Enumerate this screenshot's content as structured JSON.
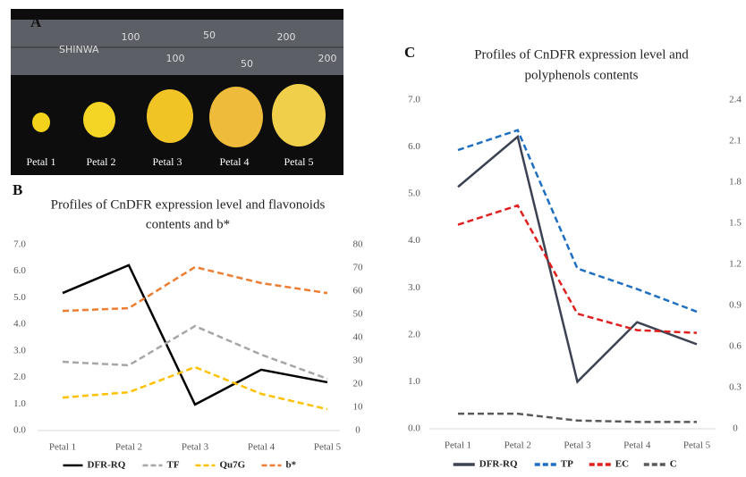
{
  "panel_a": {
    "panel": "A",
    "brand": "SHINWA",
    "ruler_labels": [
      "100",
      "50",
      "200",
      "100",
      "50",
      "200"
    ],
    "petals": [
      "Petal 1",
      "Petal 2",
      "Petal 3",
      "Petal 4",
      "Petal 5"
    ]
  },
  "chart_data": [
    {
      "type": "line",
      "panel": "B",
      "title": [
        "Profiles of CnDFR expression level and flavonoids",
        "contents and b*"
      ],
      "categories": [
        "Petal 1",
        "Petal 2",
        "Petal 3",
        "Petal 4",
        "Petal 5"
      ],
      "ylim": [
        0,
        7
      ],
      "yticks": [
        {
          "value": 0,
          "label": "0.0"
        },
        {
          "value": 1,
          "label": "1.0"
        },
        {
          "value": 2,
          "label": "2.0"
        },
        {
          "value": 3,
          "label": "3.0"
        },
        {
          "value": 4,
          "label": "4.0"
        },
        {
          "value": 5,
          "label": "5.0"
        },
        {
          "value": 6,
          "label": "6.0"
        },
        {
          "value": 7,
          "label": "7.0"
        }
      ],
      "y2lim": [
        0,
        80
      ],
      "y2ticks": [
        0,
        10,
        20,
        30,
        40,
        50,
        60,
        70,
        80
      ],
      "grid": false,
      "legend": "bottom",
      "series": [
        {
          "name": "DFR-RQ",
          "color": "#000000",
          "style": "solid",
          "values": [
            5.18,
            6.23,
            0.98,
            2.29,
            1.82
          ]
        },
        {
          "name": "TF",
          "color": "#a6a6a6",
          "style": "dashed",
          "axis": "y2",
          "values": [
            29.6,
            28.1,
            45.0,
            32.7,
            22.3
          ]
        },
        {
          "name": "Qu7G",
          "color": "#ffc000",
          "style": "dashed",
          "axis": "y2",
          "values": [
            14.2,
            16.5,
            27.3,
            15.8,
            9.2
          ]
        },
        {
          "name": "b*",
          "color": "#ed7d31",
          "style": "dashed",
          "axis": "y2",
          "values": [
            51.5,
            52.7,
            70.4,
            63.5,
            59.2
          ]
        }
      ]
    },
    {
      "type": "line",
      "panel": "C",
      "title": [
        "Profiles of CnDFR expression level and",
        "polyphenols contents"
      ],
      "categories": [
        "Petal 1",
        "Petal 2",
        "Petal 3",
        "Petal 4",
        "Petal 5"
      ],
      "ylim": [
        0,
        7
      ],
      "yticks": [
        {
          "value": 0,
          "label": "0.0"
        },
        {
          "value": 1,
          "label": "1.0"
        },
        {
          "value": 2,
          "label": "2.0"
        },
        {
          "value": 3,
          "label": "3.0"
        },
        {
          "value": 4,
          "label": "4.0"
        },
        {
          "value": 5,
          "label": "5.0"
        },
        {
          "value": 6,
          "label": "6.0"
        },
        {
          "value": 7,
          "label": "7.0"
        }
      ],
      "y2lim": [
        0,
        2.4
      ],
      "y2ticks": [
        0,
        0.3,
        0.6,
        0.9,
        1.2,
        1.5,
        1.8,
        2.1,
        2.4
      ],
      "grid": false,
      "legend": "bottom",
      "series": [
        {
          "name": "DFR-RQ",
          "color": "#3b4252",
          "style": "solid",
          "values": [
            5.15,
            6.22,
            1.0,
            2.27,
            1.8
          ]
        },
        {
          "name": "TP",
          "color": "#1f6fc0",
          "style": "dashed",
          "axis": "y2",
          "values": [
            2.035,
            2.18,
            1.17,
            1.02,
            0.855
          ]
        },
        {
          "name": "EC",
          "color": "#e0201f",
          "style": "dashed",
          "axis": "y2",
          "values": [
            1.49,
            1.63,
            0.84,
            0.72,
            0.7
          ]
        },
        {
          "name": "C",
          "color": "#595959",
          "style": "dashed",
          "axis": "y2",
          "values": [
            0.11,
            0.11,
            0.06,
            0.05,
            0.05
          ]
        }
      ]
    }
  ]
}
